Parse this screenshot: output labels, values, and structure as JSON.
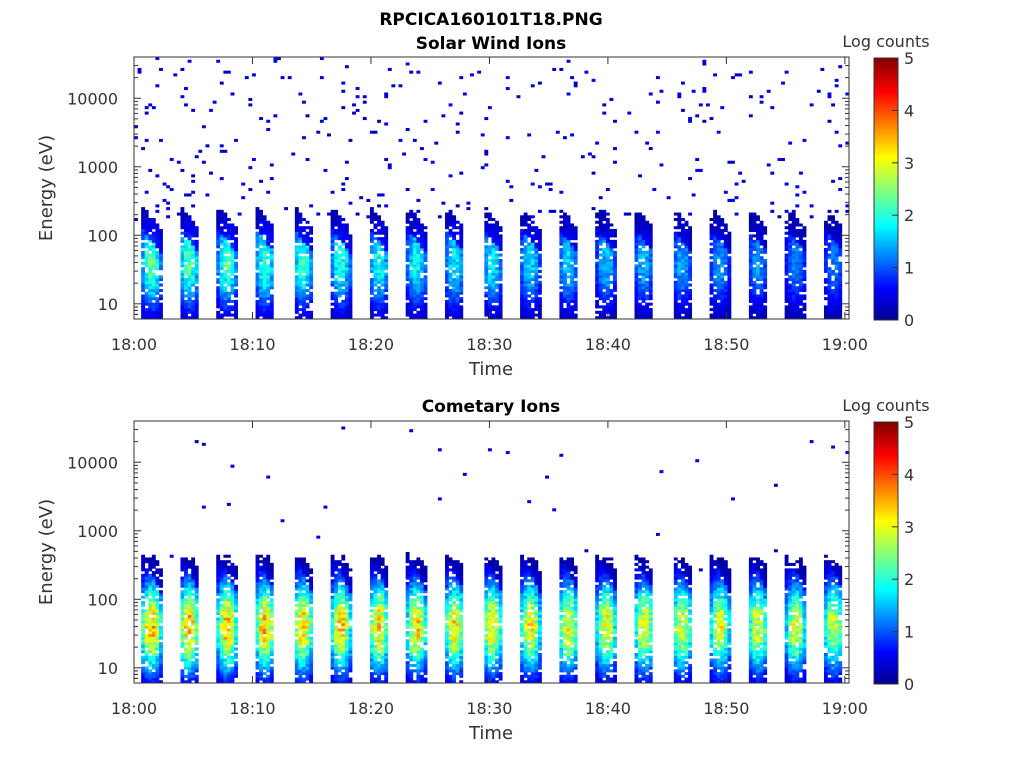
{
  "figure_title": "RPCICA160101T18.PNG",
  "chart_data": [
    {
      "type": "heatmap",
      "title": "Solar Wind Ions",
      "xlabel": "Time",
      "ylabel": "Energy (eV)",
      "x_ticks": [
        "18:00",
        "18:10",
        "18:20",
        "18:30",
        "18:40",
        "18:50",
        "19:00"
      ],
      "x_range": [
        "18:00",
        "19:00"
      ],
      "y_scale": "log",
      "y_ticks": [
        "10",
        "100",
        "1000",
        "10000"
      ],
      "y_range": [
        6,
        40000
      ],
      "colorbar": {
        "label": "Log counts",
        "ticks": [
          "0",
          "1",
          "2",
          "3",
          "4",
          "5"
        ],
        "range": [
          0,
          5
        ],
        "colormap": "jet"
      },
      "sweep_cycle_minutes": 3.2,
      "peak_log_counts": 2.6,
      "typical_core_energy_eV": 40,
      "grid": false
    },
    {
      "type": "heatmap",
      "title": "Cometary Ions",
      "xlabel": "Time",
      "ylabel": "Energy (eV)",
      "x_ticks": [
        "18:00",
        "18:10",
        "18:20",
        "18:30",
        "18:40",
        "18:50",
        "19:00"
      ],
      "x_range": [
        "18:00",
        "19:00"
      ],
      "y_scale": "log",
      "y_ticks": [
        "10",
        "100",
        "1000",
        "10000"
      ],
      "y_range": [
        6,
        40000
      ],
      "colorbar": {
        "label": "Log counts",
        "ticks": [
          "0",
          "1",
          "2",
          "3",
          "4",
          "5"
        ],
        "range": [
          0,
          5
        ],
        "colormap": "jet"
      },
      "sweep_cycle_minutes": 3.2,
      "peak_log_counts": 3.8,
      "typical_core_energy_eV": 40,
      "grid": false
    }
  ]
}
